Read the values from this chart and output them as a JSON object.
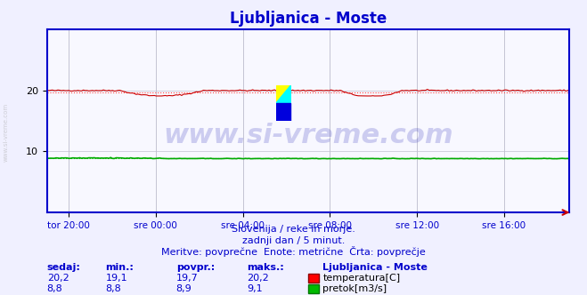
{
  "title": "Ljubljanica - Moste",
  "background_color": "#f0f0ff",
  "plot_bg_color": "#f8f8ff",
  "grid_color_major": "#c0c0d0",
  "grid_color_minor": "#e0e0f0",
  "x_tick_labels": [
    "tor 20:00",
    "sre 00:00",
    "sre 04:00",
    "sre 08:00",
    "sre 12:00",
    "sre 16:00"
  ],
  "x_tick_positions": [
    0.0416,
    0.2083,
    0.375,
    0.5416,
    0.7083,
    0.875
  ],
  "y_ticks": [
    10,
    20
  ],
  "ylim": [
    0,
    30
  ],
  "xlim": [
    0,
    1
  ],
  "temp_color": "#cc0000",
  "flow_color": "#00aa00",
  "avg_temp_color": "#ff4444",
  "avg_flow_color": "#00cc00",
  "border_color": "#0000cc",
  "watermark": "www.si-vreme.com",
  "watermark_color": "#3333bb",
  "watermark_alpha": 0.25,
  "subtitle1": "Slovenija / reke in morje.",
  "subtitle2": "zadnji dan / 5 minut.",
  "subtitle3": "Meritve: povprečne  Enote: metrične  Črta: povprečje",
  "label_color": "#0000cc",
  "table_headers": [
    "sedaj:",
    "min.:",
    "povpr.:",
    "maks.:"
  ],
  "temp_row": [
    "20,2",
    "19,1",
    "19,7",
    "20,2"
  ],
  "flow_row": [
    "8,8",
    "8,8",
    "8,9",
    "9,1"
  ],
  "legend_title": "Ljubljanica - Moste",
  "legend_temp": "temperatura[C]",
  "legend_flow": "pretok[m3/s]",
  "temp_avg_value": 19.7,
  "flow_avg_value": 8.9,
  "temp_min": 19.1,
  "temp_max": 20.2,
  "flow_min": 8.8,
  "flow_max": 9.1,
  "flow_scale_max": 30
}
